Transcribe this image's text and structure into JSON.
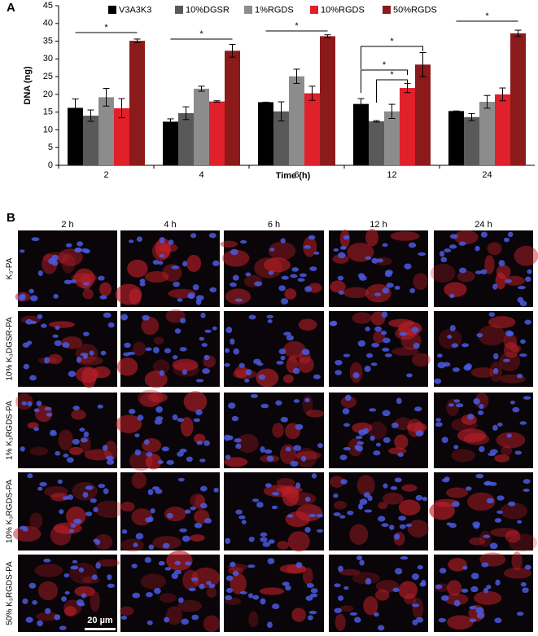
{
  "panel_a": {
    "label": "A"
  },
  "chart_data": {
    "type": "bar",
    "y_label": "DNA (ng)",
    "x_label": "Time (h)",
    "categories": [
      "2",
      "4",
      "6",
      "12",
      "24"
    ],
    "series": [
      {
        "name": "V3A3K3",
        "color": "#000000",
        "values": [
          16.2,
          12.3,
          17.8,
          17.3,
          15.3
        ],
        "errors": [
          2.5,
          0.8,
          0,
          1.5,
          0
        ]
      },
      {
        "name": "10%DGSR",
        "color": "#595959",
        "values": [
          14,
          14.7,
          15.2,
          12.4,
          13.6
        ],
        "errors": [
          1.6,
          1.8,
          2.7,
          0.2,
          1
        ]
      },
      {
        "name": "1%RGDS",
        "color": "#8c8c8c",
        "values": [
          19.2,
          21.6,
          25.1,
          15.2,
          17.9
        ],
        "errors": [
          2.5,
          0.7,
          2,
          2,
          1.8
        ]
      },
      {
        "name": "10%RGDS",
        "color": "#e0202a",
        "values": [
          16.1,
          18,
          20.3,
          21.8,
          20
        ],
        "errors": [
          2.7,
          0.2,
          2,
          1.3,
          1.8
        ]
      },
      {
        "name": "50%RGDS",
        "color": "#8b1a1a",
        "values": [
          35.1,
          32.3,
          36.4,
          28.4,
          37.2
        ],
        "errors": [
          0.5,
          1.8,
          0.4,
          3.4,
          0.9
        ]
      }
    ],
    "ylim": [
      0,
      45
    ],
    "yticks": [
      0,
      5,
      10,
      15,
      20,
      25,
      30,
      35,
      40,
      45
    ],
    "annotations": [
      "*",
      "*",
      "*",
      "*",
      "*",
      "*",
      "*"
    ]
  },
  "panel_b": {
    "label": "B",
    "columns": [
      "2 h",
      "4 h",
      "6 h",
      "12 h",
      "24 h"
    ],
    "rows": [
      "K₃-PA",
      "10% K₃DGSR-PA",
      "1% K₃RGDS-PA",
      "10% K₃RGDS-PA",
      "50% K₃RGDS-PA"
    ],
    "scale_bar": "20 µm"
  }
}
